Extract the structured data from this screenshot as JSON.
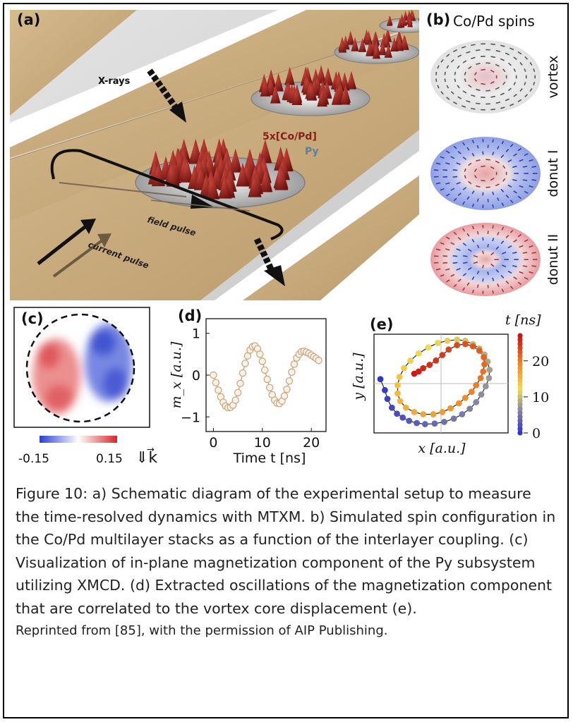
{
  "panel_a": {
    "label": "(a)",
    "xray_label": "X-rays",
    "stack_label": "5x[Co/Pd]",
    "layer_label": "Py",
    "field_label": "field pulse",
    "current_label": "current pulse",
    "colors": {
      "ground": "#c8ab7e",
      "background": "#d3d3d3",
      "spike": "#8a1f1a"
    }
  },
  "panel_b": {
    "label": "(b)",
    "title": "Co/Pd spins",
    "states": [
      "vortex",
      "donut I",
      "donut II"
    ],
    "colors": {
      "blue": "#8e9fe4",
      "red": "#e9a3a6"
    }
  },
  "panel_c": {
    "label": "(c)",
    "colorbar_min": "-0.15",
    "colorbar_max": "0.15",
    "k_label": "⇓k⃗"
  },
  "panel_d": {
    "label": "(d)",
    "xlabel": "Time t [ns]",
    "ylabel": "m_x [a.u.]"
  },
  "panel_e": {
    "label": "(e)",
    "xlabel": "x [a.u.]",
    "ylabel": "y [a.u.]",
    "colorbar_title": "t [ns]",
    "colorbar_ticks": [
      "20",
      "10",
      "0"
    ]
  },
  "chart_data": [
    {
      "type": "line",
      "panel": "d",
      "xlabel": "Time t [ns]",
      "ylabel": "m_x [a.u.]",
      "xlim": [
        -1.5,
        23
      ],
      "ylim": [
        -1.35,
        1.35
      ],
      "xticks": [
        "0",
        "10",
        "20"
      ],
      "yticks": [
        "1",
        "0",
        "−1"
      ],
      "x": [
        0,
        0.5,
        1,
        1.5,
        2,
        2.5,
        3,
        3.5,
        4,
        4.5,
        5,
        5.5,
        6,
        6.5,
        7,
        7.5,
        8,
        8.5,
        9,
        9.5,
        10,
        10.5,
        11,
        11.5,
        12,
        12.5,
        13,
        13.5,
        14,
        14.5,
        15,
        15.5,
        16,
        16.5,
        17,
        17.5,
        18,
        18.5,
        19,
        19.5,
        20,
        20.5,
        21,
        21.5
      ],
      "y": [
        0.0,
        -0.18,
        -0.36,
        -0.52,
        -0.65,
        -0.74,
        -0.78,
        -0.77,
        -0.72,
        -0.6,
        -0.42,
        -0.2,
        0.05,
        0.28,
        0.46,
        0.6,
        0.68,
        0.7,
        0.63,
        0.5,
        0.33,
        0.12,
        -0.1,
        -0.3,
        -0.47,
        -0.6,
        -0.67,
        -0.68,
        -0.62,
        -0.5,
        -0.34,
        -0.14,
        0.07,
        0.26,
        0.41,
        0.5,
        0.56,
        0.57,
        0.55,
        0.52,
        0.48,
        0.44,
        0.4,
        0.35
      ]
    },
    {
      "type": "scatter",
      "panel": "e",
      "xlabel": "x [a.u.]",
      "ylabel": "y [a.u.]",
      "colorbar": {
        "title": "t [ns]",
        "range": [
          0,
          27
        ],
        "ticks": [
          0,
          10,
          20
        ]
      },
      "x": [
        -0.95,
        -0.88,
        -0.84,
        -0.77,
        -0.69,
        -0.6,
        -0.5,
        -0.38,
        -0.25,
        -0.1,
        0.05,
        0.2,
        0.33,
        0.45,
        0.55,
        0.63,
        0.7,
        0.75,
        0.76,
        0.73,
        0.68,
        0.6,
        0.5,
        0.38,
        0.25,
        0.1,
        -0.05,
        -0.2,
        -0.35,
        -0.48,
        -0.58,
        -0.65,
        -0.68,
        -0.68,
        -0.64,
        -0.55,
        -0.42,
        -0.28,
        -0.12,
        0.02,
        0.15,
        0.28,
        0.38,
        0.48,
        0.55,
        0.62,
        0.66,
        0.68,
        0.67,
        0.6,
        0.5,
        0.38,
        0.25,
        0.12,
        0.02,
        -0.08,
        -0.18,
        -0.28,
        -0.35,
        -0.42
      ],
      "y": [
        0.08,
        -0.12,
        -0.28,
        -0.44,
        -0.55,
        -0.62,
        -0.68,
        -0.72,
        -0.74,
        -0.73,
        -0.7,
        -0.64,
        -0.56,
        -0.46,
        -0.34,
        -0.2,
        -0.05,
        0.1,
        0.25,
        0.4,
        0.53,
        0.64,
        0.72,
        0.78,
        0.8,
        0.78,
        0.74,
        0.66,
        0.55,
        0.42,
        0.28,
        0.12,
        -0.03,
        -0.18,
        -0.32,
        -0.44,
        -0.52,
        -0.56,
        -0.56,
        -0.52,
        -0.45,
        -0.36,
        -0.26,
        -0.15,
        -0.03,
        0.1,
        0.22,
        0.35,
        0.48,
        0.6,
        0.68,
        0.72,
        0.7,
        0.62,
        0.52,
        0.42,
        0.34,
        0.28,
        0.22,
        0.18
      ],
      "t": [
        0.0,
        0.45,
        0.9,
        1.35,
        1.8,
        2.25,
        2.7,
        3.15,
        3.6,
        4.05,
        4.5,
        4.95,
        5.4,
        5.85,
        6.3,
        6.75,
        7.2,
        7.65,
        8.1,
        8.55,
        9.0,
        9.45,
        9.9,
        10.35,
        10.8,
        11.25,
        11.7,
        12.15,
        12.6,
        13.05,
        13.5,
        13.95,
        14.4,
        14.85,
        15.3,
        15.75,
        16.2,
        16.65,
        17.1,
        17.55,
        18.0,
        18.45,
        18.9,
        19.35,
        19.8,
        20.25,
        20.7,
        21.15,
        21.6,
        22.05,
        22.5,
        22.95,
        23.4,
        23.85,
        24.3,
        24.75,
        25.2,
        25.65,
        26.1,
        26.55
      ]
    }
  ],
  "caption": {
    "text": "Figure 10: a) Schematic diagram of the experimental setup to measure the time-resolved dynamics with MTXM. b) Simulated spin configuration in the Co/Pd multilayer stacks as a function of the interlayer coupling. (c) Visualization of in-plane magnetization component of the Py subsystem utilizing XMCD. (d) Extracted oscillations of the magnetization component that are correlated to the vortex core displacement (e).",
    "credit": "Reprinted from [85], with the permission of AIP Publishing."
  }
}
